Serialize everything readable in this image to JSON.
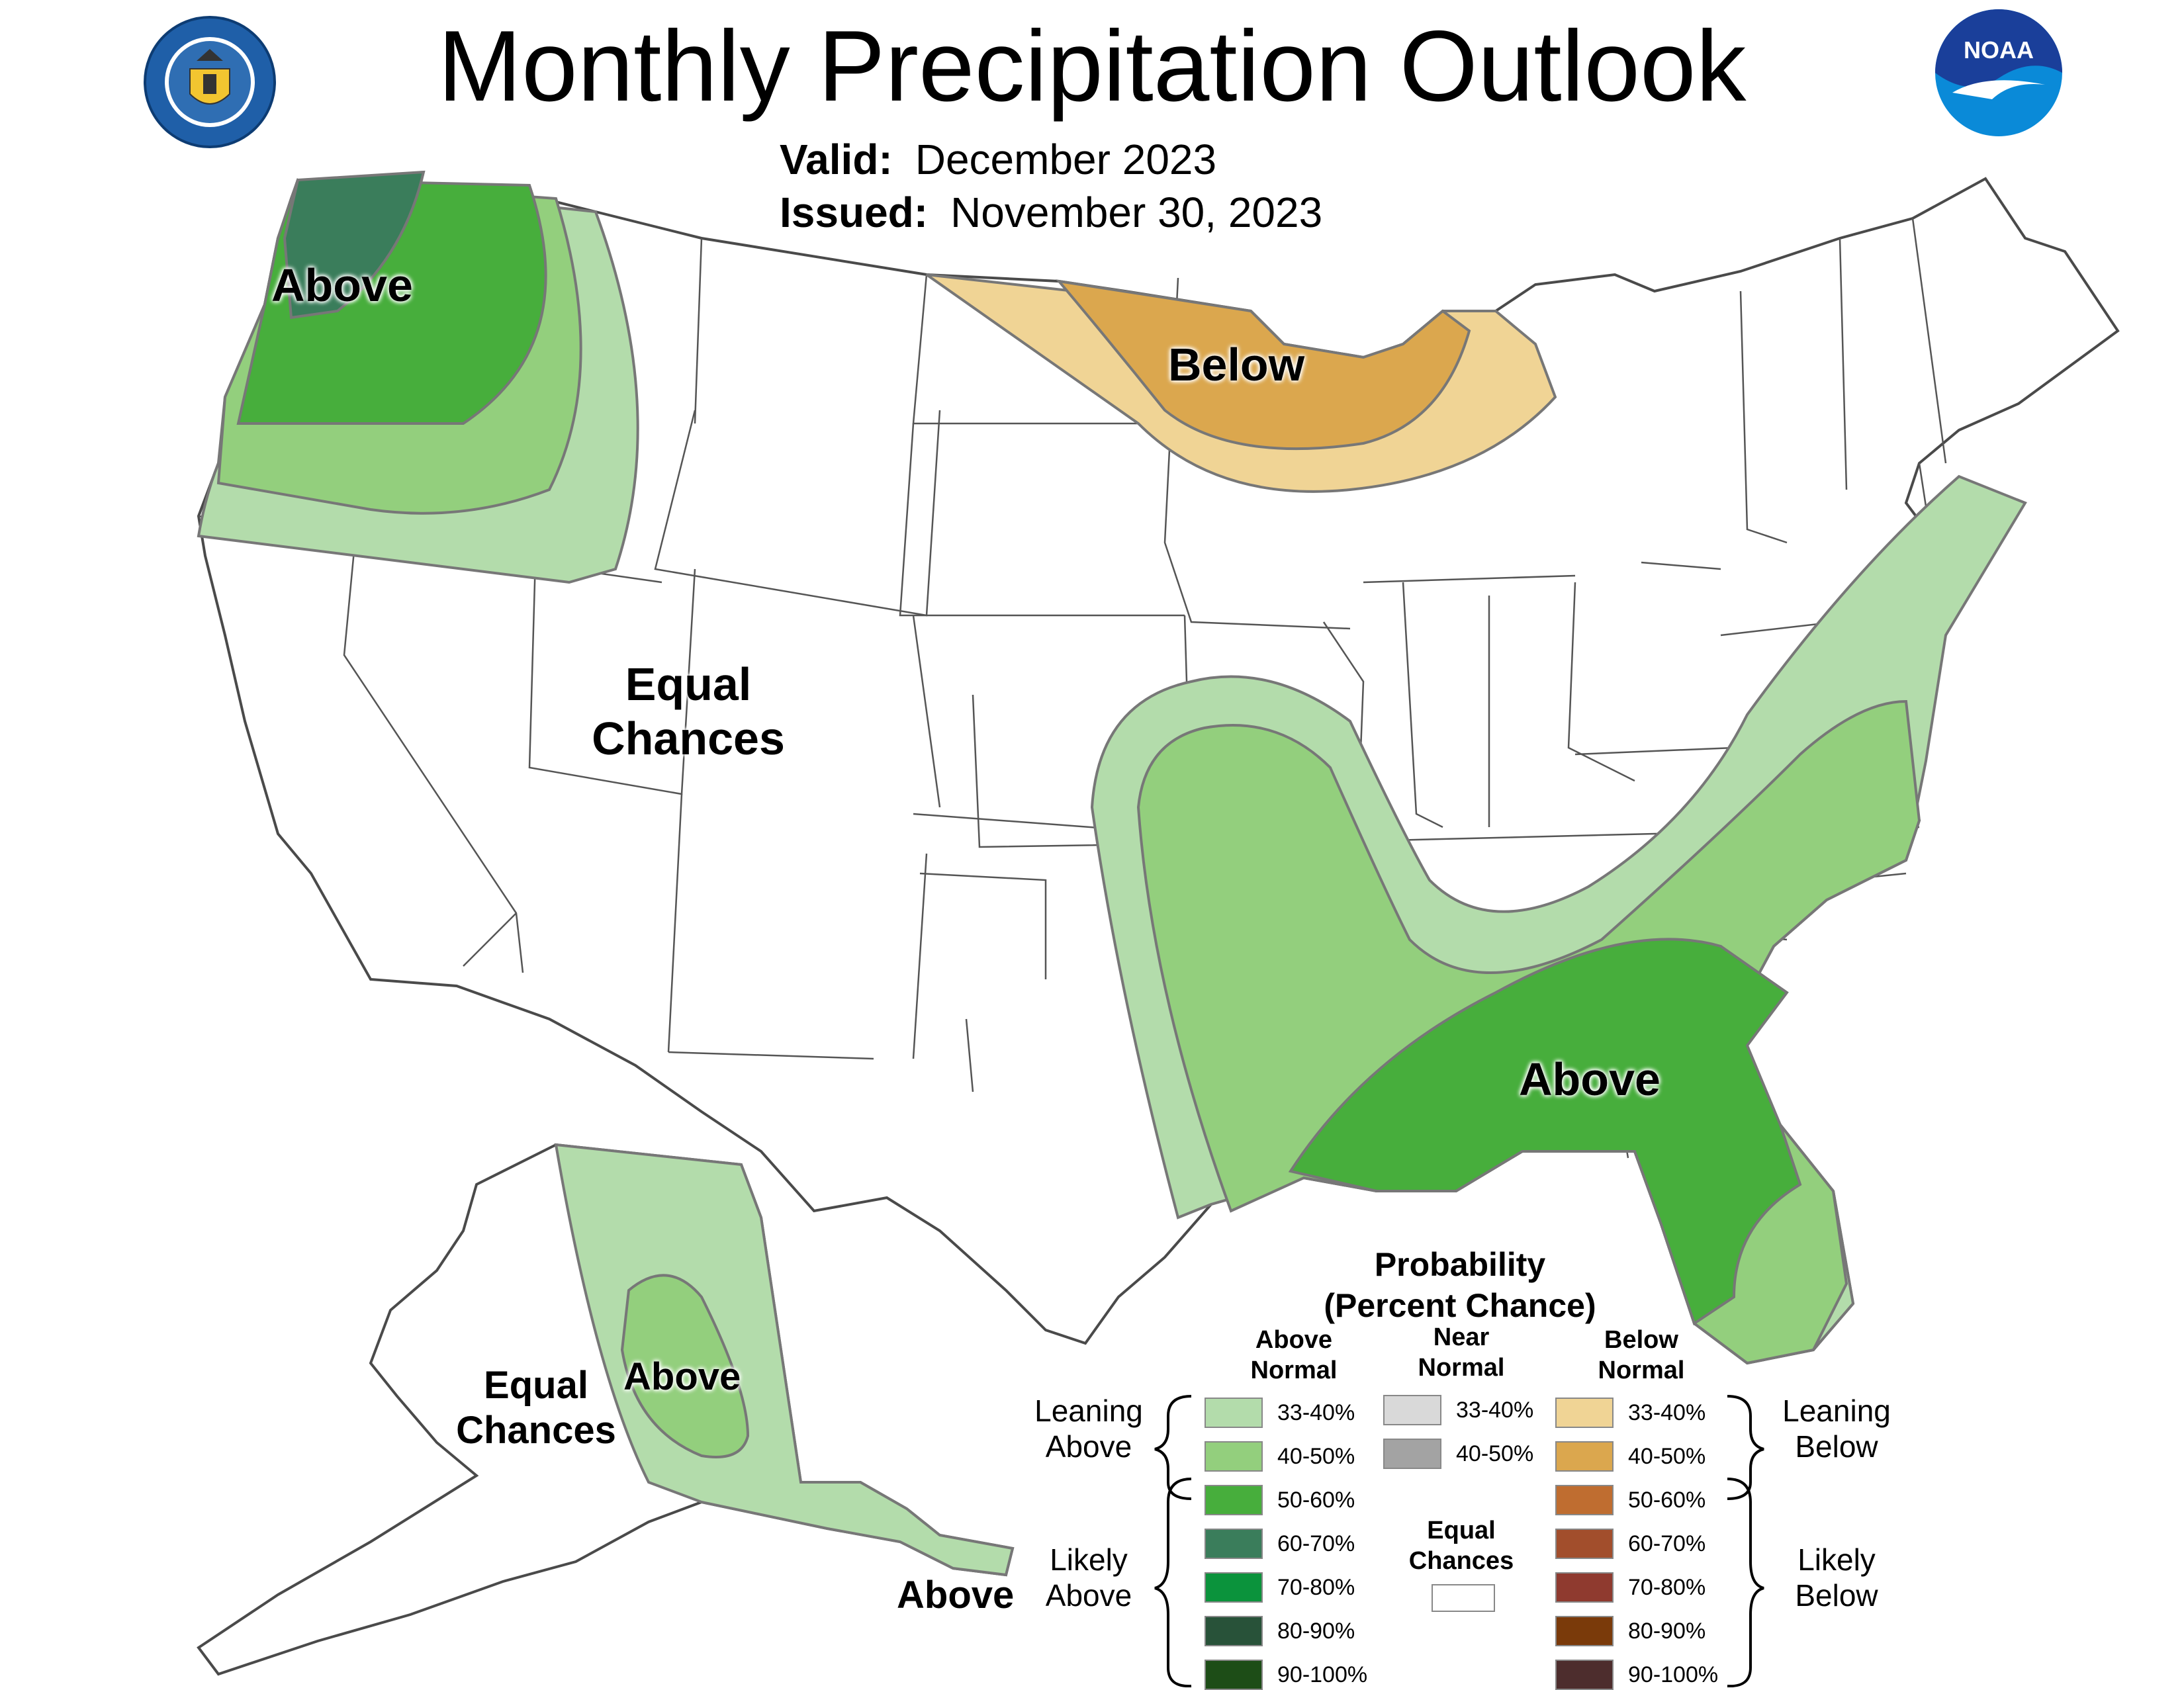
{
  "title": "Monthly Precipitation Outlook",
  "valid_label": "Valid:",
  "valid_value": "December 2023",
  "issued_label": "Issued:",
  "issued_value": "November 30, 2023",
  "logos": {
    "left": "department-of-commerce-seal-icon",
    "right": "noaa-logo-icon",
    "noaa_text": "NOAA"
  },
  "map_labels": {
    "nw_above": "Above",
    "gl_below": "Below",
    "west_equal_1": "Equal",
    "west_equal_2": "Chances",
    "se_above": "Above",
    "ak_equal_1": "Equal",
    "ak_equal_2": "Chances",
    "ak_above": "Above",
    "ak_se_above": "Above"
  },
  "legend": {
    "title_1": "Probability",
    "title_2": "(Percent Chance)",
    "col_above_1": "Above",
    "col_above_2": "Normal",
    "col_near_1": "Near",
    "col_near_2": "Normal",
    "col_below_1": "Below",
    "col_below_2": "Normal",
    "above": [
      {
        "label": "33-40%",
        "color": "#b3dcab"
      },
      {
        "label": "40-50%",
        "color": "#93cf7d"
      },
      {
        "label": "50-60%",
        "color": "#47ae3c"
      },
      {
        "label": "60-70%",
        "color": "#3a7d5b"
      },
      {
        "label": "70-80%",
        "color": "#0b933c"
      },
      {
        "label": "80-90%",
        "color": "#285239"
      },
      {
        "label": "90-100%",
        "color": "#1d4d17"
      }
    ],
    "near": [
      {
        "label": "33-40%",
        "color": "#d9d9d9"
      },
      {
        "label": "40-50%",
        "color": "#a3a3a3"
      }
    ],
    "near_equal_1": "Equal",
    "near_equal_2": "Chances",
    "equal_color": "#ffffff",
    "below": [
      {
        "label": "33-40%",
        "color": "#f0d495"
      },
      {
        "label": "40-50%",
        "color": "#dba74e"
      },
      {
        "label": "50-60%",
        "color": "#bf6d30"
      },
      {
        "label": "60-70%",
        "color": "#a24e2c"
      },
      {
        "label": "70-80%",
        "color": "#8f3a2f"
      },
      {
        "label": "80-90%",
        "color": "#7a3a0a"
      },
      {
        "label": "90-100%",
        "color": "#4d2d2d"
      }
    ],
    "leaning_above_1": "Leaning",
    "leaning_above_2": "Above",
    "likely_above_1": "Likely",
    "likely_above_2": "Above",
    "leaning_below_1": "Leaning",
    "leaning_below_2": "Below",
    "likely_below_1": "Likely",
    "likely_below_2": "Below"
  }
}
